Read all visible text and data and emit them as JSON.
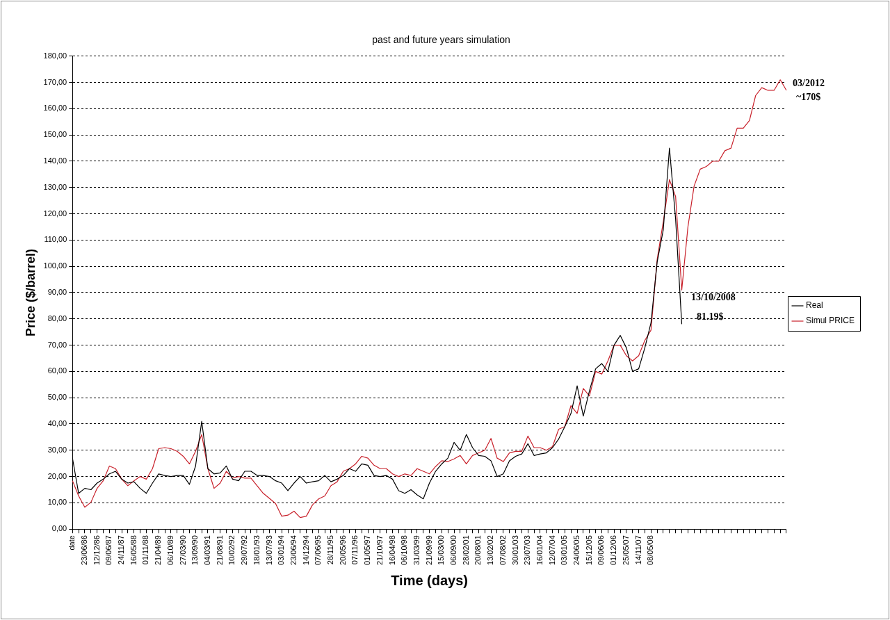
{
  "chart_data": {
    "type": "line",
    "title": "past and future years simulation",
    "xlabel": "Time (days)",
    "ylabel": "Price ($/barrel)",
    "categories": [
      "date",
      null,
      "23/06/86",
      null,
      "12/12/86",
      null,
      "09/06/87",
      null,
      "24/11/87",
      null,
      "16/05/88",
      null,
      "01/11/88",
      null,
      "21/04/89",
      null,
      "06/10/89",
      null,
      "27/03/90",
      null,
      "13/09/90",
      null,
      "04/03/91",
      null,
      "21/08/91",
      null,
      "10/02/92",
      null,
      "29/07/92",
      null,
      "18/01/93",
      null,
      "13/07/93",
      null,
      "03/01/94",
      null,
      "23/06/94",
      null,
      "14/12/94",
      null,
      "07/06/95",
      null,
      "28/11/95",
      null,
      "20/05/96",
      null,
      "07/11/96",
      null,
      "01/05/97",
      null,
      "21/10/97",
      null,
      "16/04/98",
      null,
      "06/10/98",
      null,
      "31/03/99",
      null,
      "21/09/99",
      null,
      "15/03/00",
      null,
      "06/09/00",
      null,
      "28/02/01",
      null,
      "20/08/01",
      null,
      "13/02/02",
      null,
      "07/08/02",
      null,
      "30/01/03",
      null,
      "23/07/03",
      null,
      "16/01/04",
      null,
      "12/07/04",
      null,
      "03/01/05",
      null,
      "24/06/05",
      null,
      "15/12/05",
      null,
      "09/06/06",
      null,
      "01/12/06",
      null,
      "25/05/07",
      null,
      "14/11/07",
      null,
      "08/05/08",
      null,
      null,
      null,
      null,
      null,
      null,
      null,
      null,
      null,
      null,
      null,
      null,
      null,
      null,
      null,
      null,
      null,
      null,
      null,
      null,
      null,
      null
    ],
    "series": [
      {
        "name": "Real",
        "color": "#000000",
        "values": [
          27,
          13.6,
          15.5,
          15,
          17.5,
          19,
          21,
          22,
          19,
          17.5,
          18,
          15.5,
          13.6,
          17.5,
          21,
          20.4,
          20,
          20.4,
          20.4,
          17,
          24,
          41,
          23,
          21,
          21.4,
          24,
          19,
          18.4,
          22,
          22,
          20.4,
          20.4,
          20,
          18.4,
          17.5,
          14.6,
          17.5,
          20,
          17.5,
          18,
          18.4,
          20.4,
          18,
          19,
          20.4,
          23,
          22,
          24.8,
          24.3,
          20.4,
          20,
          20.4,
          19,
          14.6,
          13.6,
          15,
          13,
          11.5,
          17.5,
          22,
          24.8,
          27,
          33,
          30,
          36,
          31,
          28,
          27.7,
          26,
          20,
          21,
          26,
          27.7,
          28.6,
          32.5,
          28,
          28.6,
          29,
          31,
          34.3,
          39,
          44,
          54.5,
          43,
          52.6,
          61,
          63,
          60,
          70,
          73.7,
          69,
          60,
          61,
          69,
          78.5,
          101.6,
          114,
          145,
          118,
          78,
          null,
          null,
          null,
          null,
          null,
          null,
          null,
          null,
          null,
          null,
          null,
          null,
          null,
          null,
          null,
          null,
          null
        ]
      },
      {
        "name": "Simul PRICE",
        "color": "#c8202a",
        "values": [
          18.4,
          12.6,
          8.3,
          10.2,
          15.5,
          18.4,
          24,
          23,
          19,
          16.5,
          18.4,
          20,
          19,
          23,
          30.6,
          31,
          30.6,
          29.6,
          27.7,
          24.8,
          29.6,
          36,
          23,
          15.5,
          17.5,
          22,
          19.4,
          20,
          19.4,
          19.4,
          16.5,
          13.6,
          11.7,
          9.7,
          4.9,
          5.3,
          6.8,
          4.4,
          4.9,
          9.2,
          11.5,
          12.6,
          16.5,
          18,
          22,
          23,
          24.8,
          27.7,
          27,
          24.3,
          23,
          23,
          21,
          20,
          21,
          20.4,
          23,
          22,
          21,
          23.8,
          26,
          25.7,
          26.7,
          28,
          24.8,
          28,
          29,
          30,
          34.5,
          27,
          25.7,
          29,
          29.6,
          29.6,
          35.4,
          31,
          31,
          30,
          31.4,
          38,
          39,
          47,
          44,
          53.5,
          50.7,
          60,
          59,
          64,
          70,
          70,
          66,
          64,
          66,
          71.8,
          75.7,
          102.6,
          117,
          133,
          126.6,
          91,
          115,
          130.5,
          137,
          138,
          140,
          140,
          144,
          145,
          152.6,
          152.6,
          155.5,
          165,
          168,
          167,
          167,
          171,
          167
        ]
      }
    ],
    "ylim": [
      0,
      180
    ],
    "yticks": [
      {
        "value": 0,
        "label": "0,00"
      },
      {
        "value": 10,
        "label": "10,00"
      },
      {
        "value": 20,
        "label": "20,00"
      },
      {
        "value": 30,
        "label": "30,00"
      },
      {
        "value": 40,
        "label": "40,00"
      },
      {
        "value": 50,
        "label": "50,00"
      },
      {
        "value": 60,
        "label": "60,00"
      },
      {
        "value": 70,
        "label": "70,00"
      },
      {
        "value": 80,
        "label": "80,00"
      },
      {
        "value": 90,
        "label": "90,00"
      },
      {
        "value": 100,
        "label": "100,00"
      },
      {
        "value": 110,
        "label": "110,00"
      },
      {
        "value": 120,
        "label": "120,00"
      },
      {
        "value": 130,
        "label": "130,00"
      },
      {
        "value": 140,
        "label": "140,00"
      },
      {
        "value": 150,
        "label": "150,00"
      },
      {
        "value": 160,
        "label": "160,00"
      },
      {
        "value": 170,
        "label": "170,00"
      },
      {
        "value": 180,
        "label": "180,00"
      }
    ],
    "grid": "y",
    "legend": "right",
    "annotations": [
      "03/2012",
      "~170$",
      "13/10/2008",
      "81.19$"
    ]
  }
}
